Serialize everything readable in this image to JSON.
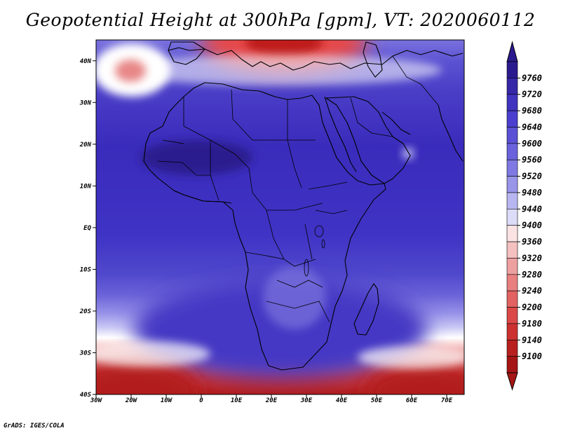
{
  "title": "Geopotential Height at 300hPa [gpm], VT: 2020060112",
  "footer": "GrADS: IGES/COLA",
  "map": {
    "projection": "latlon",
    "lon_range": [
      -30,
      75
    ],
    "lat_range": [
      -40,
      45
    ],
    "lat_ticks": [
      {
        "value": 40,
        "label": "40N"
      },
      {
        "value": 30,
        "label": "30N"
      },
      {
        "value": 20,
        "label": "20N"
      },
      {
        "value": 10,
        "label": "10N"
      },
      {
        "value": 0,
        "label": "EQ"
      },
      {
        "value": -10,
        "label": "10S"
      },
      {
        "value": -20,
        "label": "20S"
      },
      {
        "value": -30,
        "label": "30S"
      },
      {
        "value": -40,
        "label": "40S"
      }
    ],
    "lon_ticks": [
      {
        "value": -30,
        "label": "30W"
      },
      {
        "value": -20,
        "label": "20W"
      },
      {
        "value": -10,
        "label": "10W"
      },
      {
        "value": 0,
        "label": "0"
      },
      {
        "value": 10,
        "label": "10E"
      },
      {
        "value": 20,
        "label": "20E"
      },
      {
        "value": 30,
        "label": "30E"
      },
      {
        "value": 40,
        "label": "40E"
      },
      {
        "value": 50,
        "label": "50E"
      },
      {
        "value": 60,
        "label": "60E"
      },
      {
        "value": 70,
        "label": "70E"
      }
    ]
  },
  "colorbar": {
    "levels": [
      9760,
      9720,
      9680,
      9640,
      9600,
      9560,
      9520,
      9480,
      9440,
      9400,
      9360,
      9320,
      9280,
      9240,
      9200,
      9180,
      9140,
      9100
    ],
    "colors": [
      "#2b1a8e",
      "#3527a8",
      "#4033bf",
      "#4b3fcf",
      "#5a50d6",
      "#6a62dc",
      "#7f79e3",
      "#9995e9",
      "#b8b6f1",
      "#dcdbf8",
      "#fbe3e3",
      "#f4c0c0",
      "#eea0a0",
      "#e88080",
      "#e26262",
      "#db4848",
      "#cc3030",
      "#b82020",
      "#a51515"
    ]
  }
}
